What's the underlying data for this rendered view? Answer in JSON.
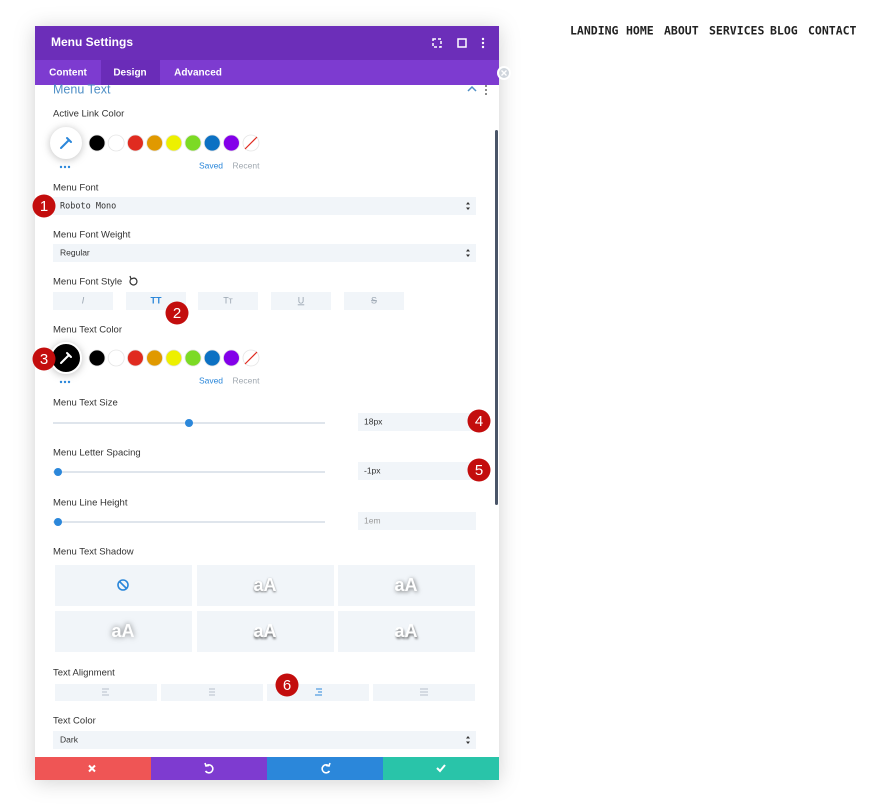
{
  "nav": [
    "LANDING",
    "HOME",
    "ABOUT",
    "SERVICES",
    "BLOG",
    "CONTACT"
  ],
  "panel": {
    "title": "Menu Settings",
    "tabs": [
      "Content",
      "Design",
      "Advanced"
    ],
    "section": "Menu Text"
  },
  "fields": {
    "active_link_color": {
      "label": "Active Link Color",
      "saved": "Saved",
      "recent": "Recent"
    },
    "menu_font": {
      "label": "Menu Font",
      "value": "Roboto Mono"
    },
    "menu_font_weight": {
      "label": "Menu Font Weight",
      "value": "Regular"
    },
    "menu_font_style": {
      "label": "Menu Font Style",
      "options": [
        "I",
        "TT",
        "Tт",
        "U",
        "S"
      ]
    },
    "menu_text_color": {
      "label": "Menu Text Color",
      "saved": "Saved",
      "recent": "Recent"
    },
    "menu_text_size": {
      "label": "Menu Text Size",
      "value": "18px"
    },
    "menu_letter_spacing": {
      "label": "Menu Letter Spacing",
      "value": "-1px"
    },
    "menu_line_height": {
      "label": "Menu Line Height",
      "value": "1em"
    },
    "menu_text_shadow": {
      "label": "Menu Text Shadow",
      "previews": [
        "aA",
        "aA",
        "aA",
        "aA",
        "aA"
      ]
    },
    "text_alignment": {
      "label": "Text Alignment"
    },
    "text_color": {
      "label": "Text Color",
      "value": "Dark"
    }
  },
  "badges": [
    1,
    2,
    3,
    4,
    5,
    6
  ]
}
